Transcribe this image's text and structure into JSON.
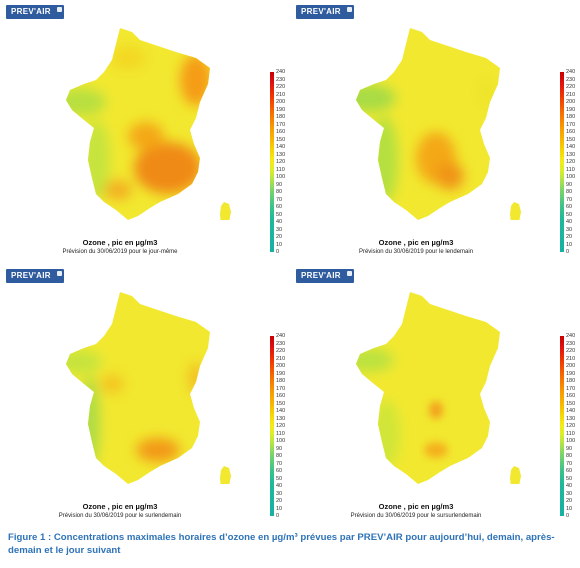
{
  "brand": {
    "logo_text": "PREV'AIR"
  },
  "scale": {
    "labels": [
      "240",
      "230",
      "220",
      "210",
      "200",
      "190",
      "180",
      "170",
      "160",
      "150",
      "140",
      "130",
      "120",
      "110",
      "100",
      "90",
      "80",
      "70",
      "60",
      "50",
      "40",
      "30",
      "20",
      "10",
      "0"
    ],
    "colors": {
      "max": "#c80000",
      "high": "#f66a00",
      "mid": "#f2ec1a",
      "low": "#16b0a4"
    }
  },
  "maps": [
    {
      "title": "Ozone , pic en µg/m3",
      "subtitle": "Prévision du 30/06/2019 pour le jour-même"
    },
    {
      "title": "Ozone , pic en µg/m3",
      "subtitle": "Prévision du 30/06/2019 pour le lendemain"
    },
    {
      "title": "Ozone , pic en µg/m3",
      "subtitle": "Prévision du 30/06/2019 pour le surlendemain"
    },
    {
      "title": "Ozone , pic en µg/m3",
      "subtitle": "Prévision du 30/06/2019 pour le sursurlendemain"
    }
  ],
  "figure_caption": "Figure 1 : Concentrations maximales horaires d’ozone en µg/m³ prévues par PREV’AIR pour aujourd’hui, demain, après-demain et le jour suivant"
}
